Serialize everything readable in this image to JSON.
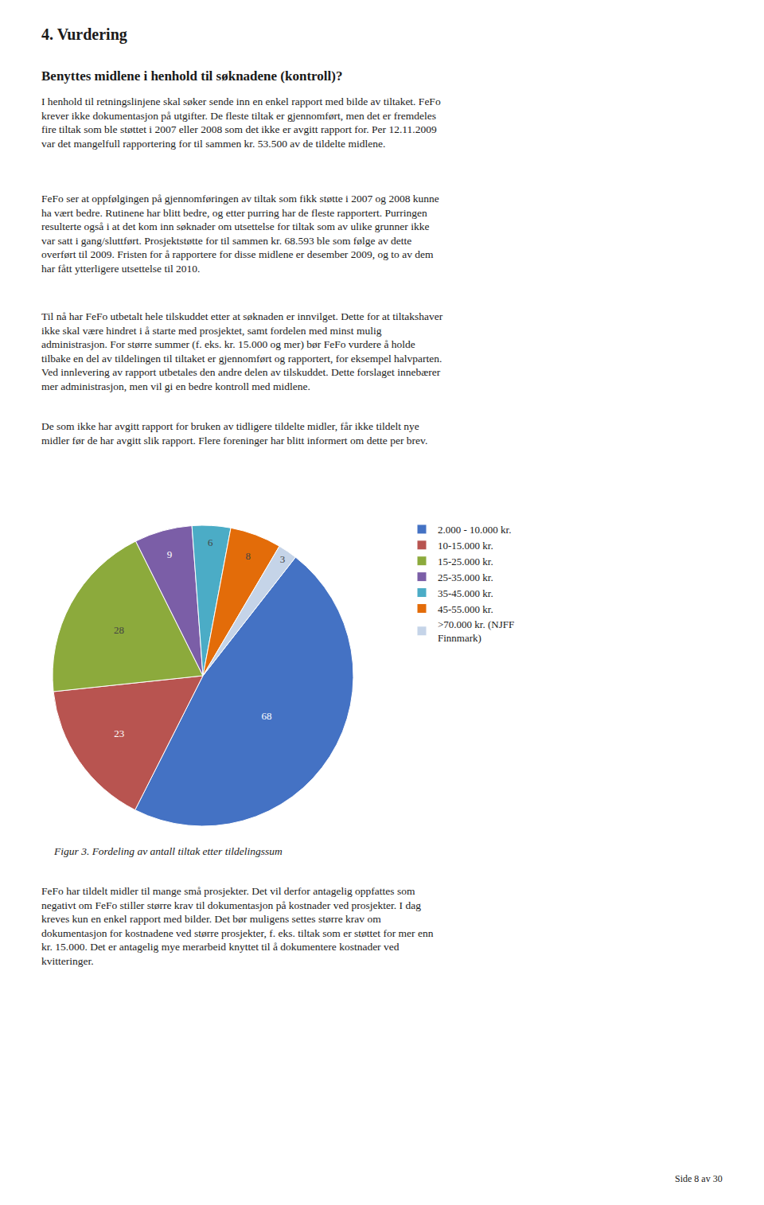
{
  "chart_data": {
    "type": "pie",
    "title": "4. Vurdering",
    "subtitle": "Benyttes midlene i henhold til søknadene (kontroll)?",
    "categories": [
      "2.000 - 10.000 kr.",
      "10-15.000 kr.",
      "15-25.000 kr.",
      "25-35.000 kr.",
      "35-45.000 kr.",
      "45-55.000 kr.",
      ">70.000 kr. (NJFF\nFinnmark)"
    ],
    "values": [
      68,
      23,
      28,
      9,
      6,
      8,
      3
    ],
    "colors": [
      "#4472C4",
      "#B85450",
      "#8CAA3C",
      "#7B5EA7",
      "#4BACC6",
      "#E36C09",
      "#C5D4E8"
    ],
    "data_labels": true,
    "legend": "right",
    "annotations": [
      "I henhold til retningslinjene skal søker sende inn en enkel rapport med bilde av tiltaket. FeFo\nkrever ikke dokumentasjon på utgifter. De fleste tiltak er gjennomført, men det er fremdeles\nfire tiltak som ble støttet i 2007 eller 2008 som det ikke er avgitt rapport for. Per 12.11.2009\nvar det mangelfull rapportering for til sammen kr. 53.500 av de tildelte midlene.",
      "FeFo ser at oppfølgingen på gjennomføringen av tiltak som fikk støtte i 2007 og 2008 kunne\nha vært bedre. Rutinene har blitt bedre, og etter purring har de fleste rapportert. Purringen\nresulterte også i at det kom inn søknader om utsettelse for tiltak som av ulike grunner ikke\nvar satt i gang/sluttført. Prosjektstøtte for til sammen kr. 68.593 ble som følge av dette\noverført til 2009. Fristen for å rapportere for disse midlene er desember 2009, og to av dem\nhar fått ytterligere utsettelse til 2010.",
      "Til nå har FeFo utbetalt hele tilskuddet etter at søknaden er innvilget. Dette for at tiltakshaver\nikke skal være hindret i å starte med prosjektet, samt fordelen med minst mulig\nadministrasjon. For større summer (f. eks. kr. 15.000 og mer) bør FeFo vurdere å holde\ntilbake en del av tildelingen til tiltaket er gjennomført og rapportert, for eksempel halvparten.\nVed innlevering av rapport utbetales den andre delen av tilskuddet. Dette forslaget innebærer\nmer administrasjon, men vil gi en bedre kontroll med midlene.",
      "De som ikke har avgitt rapport for bruken av tidligere tildelte midler, får ikke tildelt nye\nmidler før de har avgitt slik rapport. Flere foreninger har blitt informert om dette per brev.",
      "Figur 3. Fordeling av antall tiltak etter tildelingssum",
      "FeFo har tildelt midler til mange små prosjekter. Det vil derfor antagelig oppfattes som\nnegativt om FeFo stiller større krav til dokumentasjon på kostnader ved prosjekter. I dag\nkreves kun en enkel rapport med bilder. Det bør muligens settes større krav om\ndokumentasjon for kostnadene ved større prosjekter, f. eks. tiltak som er støttet for mer enn\nkr. 15.000. Det er antagelig mye merarbeid knyttet til å dokumentere kostnader ved\nkvitteringer.",
      "Side 8 av 30"
    ]
  }
}
